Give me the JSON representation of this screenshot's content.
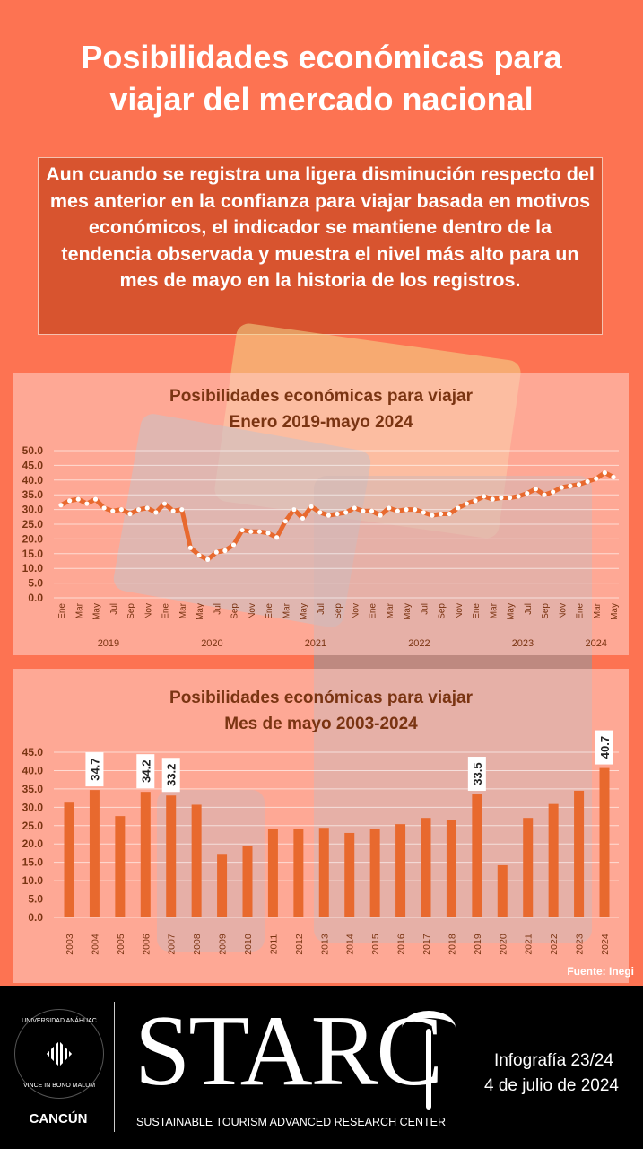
{
  "header": {
    "title_line1": "Posibilidades económicas para",
    "title_line2": "viajar del mercado nacional"
  },
  "summary": "Aun cuando se registra una ligera disminución respecto del mes anterior en la confianza para viajar basada en motivos económicos, el indicador se mantiene dentro de la tendencia observada y muestra el nivel más alto para un mes de mayo en la historia de los registros.",
  "colors": {
    "background": "#fd7352",
    "summary_box": "#d8542f",
    "series": "#e8692e",
    "title_text": "#7a3412",
    "footer": "#000000"
  },
  "chart_data": [
    {
      "type": "line",
      "title": "Posibilidades económicas para viajar",
      "subtitle": "Enero 2019-mayo 2024",
      "ylim": [
        0,
        50
      ],
      "yticks": [
        "0.0",
        "5.0",
        "10.0",
        "15.0",
        "20.0",
        "25.0",
        "30.0",
        "35.0",
        "40.0",
        "45.0",
        "50.0"
      ],
      "month_labels": [
        "Ene",
        "Mar",
        "May",
        "Jul",
        "Sep",
        "Nov"
      ],
      "years": [
        "2019",
        "2020",
        "2021",
        "2022",
        "2023",
        "2024"
      ],
      "grid": true,
      "values": [
        31.5,
        33,
        33.5,
        32,
        33.5,
        30.5,
        29.5,
        30,
        28.5,
        30,
        30.5,
        29,
        32,
        29.5,
        30,
        17,
        14.5,
        13,
        15.5,
        16,
        18,
        23,
        22.5,
        22.5,
        22,
        20.5,
        26,
        30,
        27,
        31,
        29,
        28,
        28.5,
        29,
        30.5,
        29.5,
        29.5,
        28,
        30.5,
        29.5,
        30,
        30,
        29,
        28,
        28.5,
        28.5,
        30.5,
        32,
        33,
        34.5,
        33.5,
        34,
        34,
        34.5,
        35.5,
        37,
        35,
        36,
        37.5,
        38,
        38.5,
        39.5,
        40.5,
        42.5,
        41
      ]
    },
    {
      "type": "bar",
      "title": "Posibilidades económicas para viajar",
      "subtitle": "Mes de mayo 2003-2024",
      "ylim": [
        0,
        45
      ],
      "yticks": [
        "0.0",
        "5.0",
        "10.0",
        "15.0",
        "20.0",
        "25.0",
        "30.0",
        "35.0",
        "40.0",
        "45.0"
      ],
      "grid": true,
      "categories": [
        "2003",
        "2004",
        "2005",
        "2006",
        "2007",
        "2008",
        "2009",
        "2010",
        "2011",
        "2012",
        "2013",
        "2014",
        "2015",
        "2016",
        "2017",
        "2018",
        "2019",
        "2020",
        "2021",
        "2022",
        "2023",
        "2024"
      ],
      "values": [
        31.5,
        34.7,
        27.6,
        34.2,
        33.2,
        30.7,
        17.3,
        19.5,
        24.1,
        24.1,
        24.4,
        23.0,
        24.1,
        25.4,
        27.1,
        26.6,
        33.5,
        14.2,
        27.1,
        30.9,
        34.5,
        40.7
      ],
      "data_labels": {
        "2004": "34.7",
        "2006": "34.2",
        "2007": "33.2",
        "2019": "33.5",
        "2024": "40.7"
      }
    }
  ],
  "source": "Fuente: Inegi",
  "footer": {
    "university": "UNIVERSIDAD ANÁHUAC",
    "motto": "VINCE IN BONO MALUM",
    "campus": "CANCÚN",
    "brand": "STARC",
    "brand_subtitle": "SUSTAINABLE TOURISM ADVANCED RESEARCH CENTER",
    "infographic": "Infografía 23/24",
    "date": "4 de julio de 2024"
  }
}
